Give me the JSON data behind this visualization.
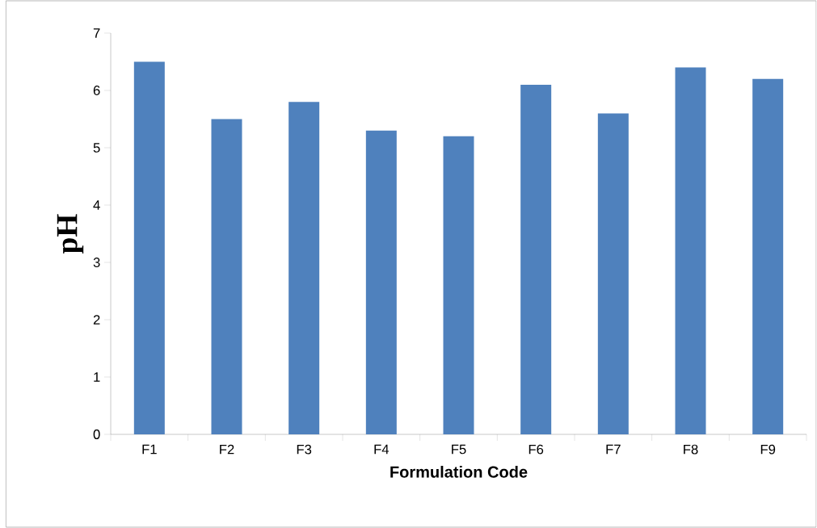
{
  "chart_data": {
    "type": "bar",
    "xlabel": "Formulation Code",
    "ylabel": "pH",
    "categories": [
      "F1",
      "F2",
      "F3",
      "F4",
      "F5",
      "F6",
      "F7",
      "F8",
      "F9"
    ],
    "values": [
      6.5,
      5.5,
      5.8,
      5.3,
      5.2,
      6.1,
      5.6,
      6.4,
      6.2
    ],
    "color": "#4f81bd",
    "ylim": [
      0,
      7
    ],
    "yticks": [
      0,
      1,
      2,
      3,
      4,
      5,
      6,
      7
    ]
  }
}
